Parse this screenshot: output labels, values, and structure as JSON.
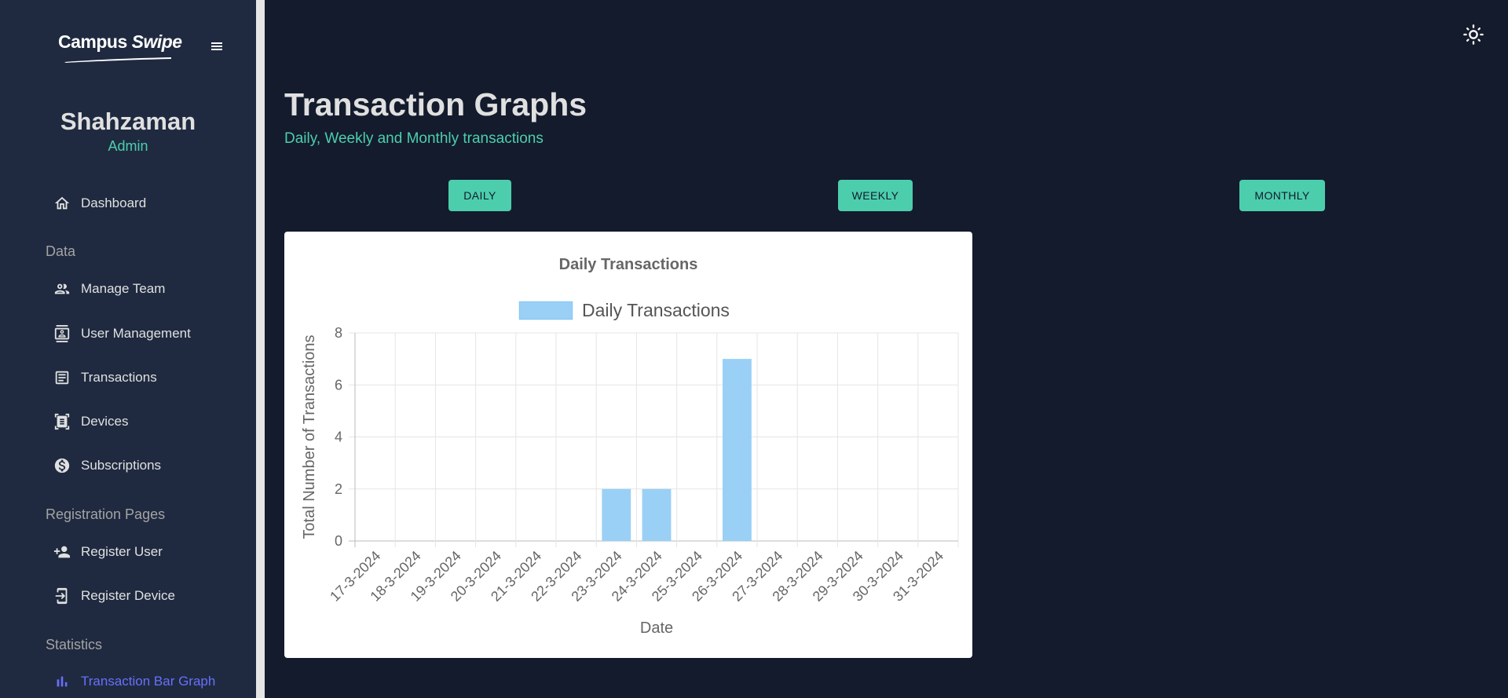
{
  "sidebar": {
    "logo": {
      "campus": "Campus",
      "swipe": "Swipe"
    },
    "menu_icon": "hamburger-icon",
    "profile": {
      "name": "Shahzaman",
      "role": "Admin"
    },
    "dashboard": {
      "label": "Dashboard",
      "icon": "home-icon"
    },
    "sections": {
      "data": "Data",
      "registration": "Registration Pages",
      "statistics": "Statistics"
    },
    "data_items": [
      {
        "label": "Manage Team",
        "icon": "people-icon"
      },
      {
        "label": "User Management",
        "icon": "contact-card-icon"
      },
      {
        "label": "Transactions",
        "icon": "receipt-icon"
      },
      {
        "label": "Devices",
        "icon": "document-scanner-icon"
      },
      {
        "label": "Subscriptions",
        "icon": "dollar-circle-icon"
      }
    ],
    "registration_items": [
      {
        "label": "Register User",
        "icon": "person-add-icon"
      },
      {
        "label": "Register Device",
        "icon": "phone-add-icon"
      }
    ],
    "statistics_items": [
      {
        "label": "Transaction Bar Graph",
        "icon": "bar-chart-icon"
      }
    ]
  },
  "topbar": {
    "theme_icon": "light-mode-icon"
  },
  "header": {
    "title": "Transaction Graphs",
    "subtitle": "Daily, Weekly and Monthly transactions"
  },
  "tabs": {
    "daily": "DAILY",
    "weekly": "WEEKLY",
    "monthly": "MONTHLY"
  },
  "colors": {
    "accent": "#4cceac",
    "active_nav": "#6870fa",
    "bar_fill": "#9ad0f5",
    "background": "#141b2d",
    "sidebar": "#1f2a40"
  },
  "chart_data": {
    "type": "bar",
    "title": "Daily Transactions",
    "legend": [
      "Daily Transactions"
    ],
    "legend_position": "top",
    "xlabel": "Date",
    "ylabel": "Total Number of Transactions",
    "ylim": [
      0,
      8
    ],
    "yticks": [
      0,
      2,
      4,
      6,
      8
    ],
    "grid": true,
    "categories": [
      "17-3-2024",
      "18-3-2024",
      "19-3-2024",
      "20-3-2024",
      "21-3-2024",
      "22-3-2024",
      "23-3-2024",
      "24-3-2024",
      "25-3-2024",
      "26-3-2024",
      "27-3-2024",
      "28-3-2024",
      "29-3-2024",
      "30-3-2024",
      "31-3-2024"
    ],
    "series": [
      {
        "name": "Daily Transactions",
        "values": [
          0,
          0,
          0,
          0,
          0,
          0,
          2,
          2,
          0,
          7,
          0,
          0,
          0,
          0,
          0
        ]
      }
    ]
  }
}
